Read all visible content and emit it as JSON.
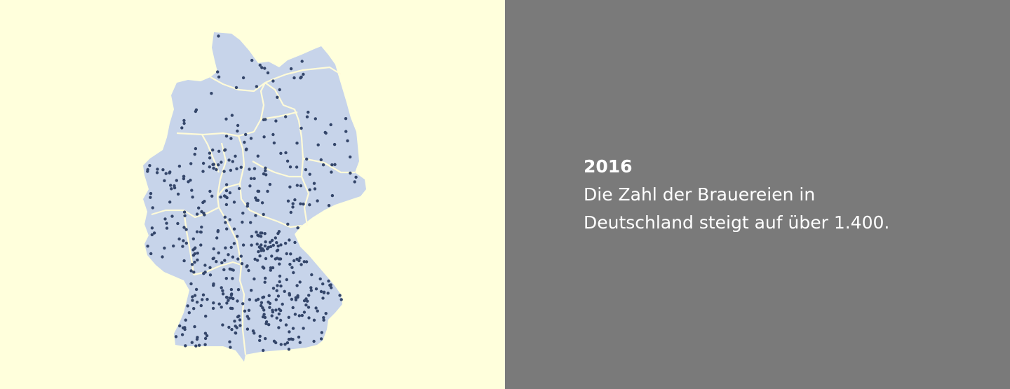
{
  "colors": {
    "left_background": "#ffffdc",
    "right_background": "#7a7a7a",
    "map_fill": "#c7d4ea",
    "border": "#fffbd8",
    "dot": "#34466a",
    "caption_text": "#ffffff"
  },
  "caption": {
    "year": "2016",
    "line1": "Die Zahl der Brauereien in",
    "line2": "Deutschland steigt auf über 1.400."
  },
  "map": {
    "subject": "Germany",
    "marker": "brewery-dot",
    "brewery_count": "über 1.400"
  }
}
